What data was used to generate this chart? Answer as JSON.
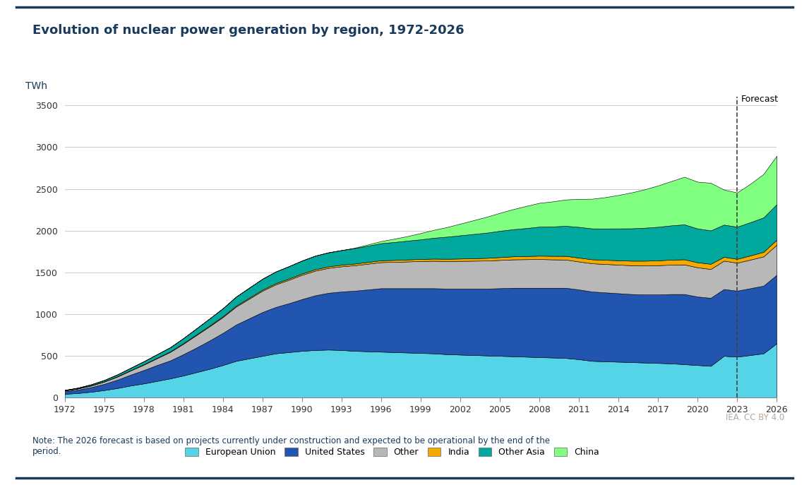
{
  "title": "Evolution of nuclear power generation by region, 1972-2026",
  "ylabel": "TWh",
  "credit": "IEA. CC BY 4.0",
  "note": "Note: The 2026 forecast is based on projects currently under construction and expected to be operational by the end of the\nperiod.",
  "forecast_year": 2023,
  "background_color": "#ffffff",
  "title_color": "#1a3a5c",
  "border_color": "#1a3a5c",
  "colors": {
    "European Union": "#55d4e8",
    "United States": "#2255b0",
    "Other": "#b8b8b8",
    "India": "#f5a800",
    "Other Asia": "#00a89d",
    "China": "#80ff80"
  },
  "years": [
    1972,
    1973,
    1974,
    1975,
    1976,
    1977,
    1978,
    1979,
    1980,
    1981,
    1982,
    1983,
    1984,
    1985,
    1986,
    1987,
    1988,
    1989,
    1990,
    1991,
    1992,
    1993,
    1994,
    1995,
    1996,
    1997,
    1998,
    1999,
    2000,
    2001,
    2002,
    2003,
    2004,
    2005,
    2006,
    2007,
    2008,
    2009,
    2010,
    2011,
    2012,
    2013,
    2014,
    2015,
    2016,
    2017,
    2018,
    2019,
    2020,
    2021,
    2022,
    2023,
    2024,
    2025,
    2026
  ],
  "European Union": [
    45,
    55,
    70,
    90,
    115,
    145,
    170,
    200,
    230,
    265,
    305,
    345,
    390,
    440,
    470,
    500,
    530,
    545,
    560,
    570,
    575,
    570,
    560,
    555,
    550,
    545,
    540,
    535,
    530,
    520,
    515,
    510,
    505,
    500,
    495,
    490,
    485,
    480,
    475,
    460,
    440,
    435,
    430,
    425,
    420,
    415,
    410,
    400,
    390,
    380,
    500,
    490,
    510,
    530,
    650
  ],
  "United States": [
    30,
    40,
    55,
    75,
    100,
    130,
    160,
    190,
    215,
    255,
    295,
    340,
    385,
    435,
    480,
    525,
    555,
    585,
    620,
    655,
    680,
    700,
    720,
    740,
    760,
    765,
    770,
    775,
    780,
    785,
    790,
    795,
    800,
    810,
    820,
    825,
    830,
    835,
    840,
    835,
    830,
    825,
    820,
    815,
    815,
    820,
    830,
    840,
    820,
    815,
    800,
    790,
    800,
    810,
    820
  ],
  "Other": [
    10,
    14,
    19,
    27,
    37,
    50,
    65,
    82,
    102,
    125,
    150,
    170,
    190,
    215,
    235,
    255,
    270,
    280,
    290,
    295,
    298,
    302,
    305,
    308,
    312,
    315,
    320,
    325,
    328,
    330,
    332,
    334,
    336,
    338,
    340,
    342,
    344,
    340,
    338,
    335,
    338,
    340,
    342,
    345,
    348,
    350,
    352,
    354,
    350,
    345,
    340,
    335,
    342,
    350,
    360
  ],
  "India": [
    2,
    2,
    3,
    3,
    4,
    4,
    5,
    5,
    6,
    7,
    8,
    9,
    10,
    11,
    12,
    13,
    14,
    15,
    16,
    17,
    18,
    19,
    20,
    21,
    22,
    23,
    24,
    25,
    26,
    27,
    28,
    30,
    32,
    34,
    36,
    38,
    40,
    42,
    44,
    46,
    48,
    50,
    52,
    54,
    56,
    58,
    60,
    62,
    60,
    62,
    46,
    46,
    50,
    55,
    60
  ],
  "Other Asia": [
    5,
    8,
    12,
    16,
    22,
    28,
    35,
    42,
    50,
    60,
    72,
    85,
    95,
    108,
    120,
    130,
    140,
    148,
    155,
    162,
    168,
    175,
    185,
    195,
    205,
    215,
    225,
    235,
    250,
    265,
    278,
    290,
    302,
    315,
    325,
    335,
    348,
    352,
    360,
    368,
    370,
    375,
    382,
    388,
    395,
    402,
    410,
    418,
    405,
    400,
    385,
    385,
    398,
    412,
    425
  ],
  "China": [
    0,
    0,
    0,
    0,
    0,
    0,
    0,
    0,
    0,
    0,
    0,
    0,
    0,
    0,
    0,
    0,
    0,
    0,
    0,
    0,
    0,
    0,
    5,
    15,
    25,
    40,
    55,
    75,
    95,
    115,
    140,
    165,
    190,
    215,
    240,
    265,
    285,
    300,
    315,
    335,
    355,
    375,
    400,
    430,
    460,
    495,
    530,
    570,
    560,
    570,
    420,
    410,
    460,
    520,
    580
  ]
}
